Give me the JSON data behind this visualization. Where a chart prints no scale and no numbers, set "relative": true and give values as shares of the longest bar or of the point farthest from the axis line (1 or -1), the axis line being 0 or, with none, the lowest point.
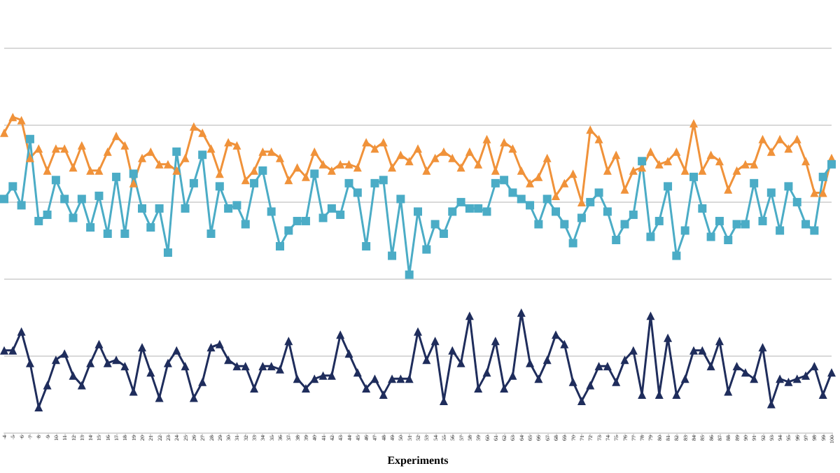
{
  "chart_data": {
    "type": "line",
    "xlabel": "Experiments",
    "relative": true,
    "grid": "y",
    "categories": [
      "4",
      "5",
      "6",
      "7",
      "8",
      "9",
      "10",
      "11",
      "12",
      "13",
      "14",
      "15",
      "16",
      "17",
      "18",
      "19",
      "20",
      "21",
      "22",
      "23",
      "24",
      "25",
      "26",
      "27",
      "28",
      "29",
      "30",
      "31",
      "32",
      "33",
      "34",
      "35",
      "36",
      "37",
      "38",
      "39",
      "40",
      "41",
      "42",
      "43",
      "44",
      "45",
      "46",
      "47",
      "48",
      "49",
      "50",
      "51",
      "52",
      "53",
      "54",
      "55",
      "56",
      "57",
      "58",
      "59",
      "60",
      "61",
      "62",
      "63",
      "64",
      "65",
      "66",
      "67",
      "68",
      "69",
      "70",
      "71",
      "72",
      "73",
      "74",
      "75",
      "76",
      "77",
      "78",
      "79",
      "80",
      "81",
      "82",
      "83",
      "84",
      "85",
      "86",
      "87",
      "88",
      "89",
      "90",
      "91",
      "92",
      "93",
      "94",
      "95",
      "96",
      "97",
      "98",
      "99",
      "100"
    ],
    "series": [
      {
        "color": "#f0923a",
        "marker": "triangle",
        "values": [
          0.95,
          1.0,
          0.99,
          0.87,
          0.9,
          0.83,
          0.9,
          0.9,
          0.84,
          0.91,
          0.83,
          0.83,
          0.89,
          0.94,
          0.91,
          0.79,
          0.87,
          0.89,
          0.85,
          0.85,
          0.83,
          0.87,
          0.97,
          0.95,
          0.9,
          0.82,
          0.92,
          0.91,
          0.8,
          0.83,
          0.89,
          0.89,
          0.87,
          0.8,
          0.84,
          0.81,
          0.89,
          0.85,
          0.83,
          0.85,
          0.85,
          0.84,
          0.92,
          0.9,
          0.92,
          0.84,
          0.88,
          0.86,
          0.9,
          0.83,
          0.87,
          0.89,
          0.87,
          0.84,
          0.89,
          0.85,
          0.93,
          0.83,
          0.92,
          0.9,
          0.83,
          0.79,
          0.81,
          0.87,
          0.75,
          0.79,
          0.82,
          0.73,
          0.96,
          0.93,
          0.83,
          0.88,
          0.77,
          0.83,
          0.84,
          0.89,
          0.85,
          0.86,
          0.89,
          0.83,
          0.98,
          0.83,
          0.88,
          0.86,
          0.77,
          0.83,
          0.85,
          0.85,
          0.93,
          0.89,
          0.93,
          0.9,
          0.93,
          0.86,
          0.76,
          0.76,
          0.87
        ]
      },
      {
        "color": "#4bacc6",
        "marker": "square",
        "values": [
          0.74,
          0.78,
          0.72,
          0.93,
          0.67,
          0.69,
          0.8,
          0.74,
          0.68,
          0.74,
          0.65,
          0.75,
          0.63,
          0.81,
          0.63,
          0.82,
          0.71,
          0.65,
          0.71,
          0.57,
          0.89,
          0.71,
          0.79,
          0.88,
          0.63,
          0.78,
          0.71,
          0.72,
          0.66,
          0.79,
          0.83,
          0.7,
          0.59,
          0.64,
          0.67,
          0.67,
          0.82,
          0.68,
          0.71,
          0.69,
          0.79,
          0.76,
          0.59,
          0.79,
          0.8,
          0.56,
          0.74,
          0.5,
          0.7,
          0.58,
          0.66,
          0.63,
          0.7,
          0.73,
          0.71,
          0.71,
          0.7,
          0.79,
          0.8,
          0.76,
          0.74,
          0.72,
          0.66,
          0.74,
          0.7,
          0.66,
          0.6,
          0.68,
          0.73,
          0.76,
          0.7,
          0.61,
          0.66,
          0.69,
          0.86,
          0.62,
          0.67,
          0.78,
          0.56,
          0.64,
          0.81,
          0.71,
          0.62,
          0.67,
          0.61,
          0.66,
          0.66,
          0.79,
          0.67,
          0.76,
          0.64,
          0.78,
          0.73,
          0.66,
          0.64,
          0.81,
          0.85
        ]
      },
      {
        "color": "#1f2d5c",
        "marker": "triangle",
        "values": [
          0.26,
          0.26,
          0.32,
          0.22,
          0.08,
          0.15,
          0.23,
          0.25,
          0.18,
          0.15,
          0.22,
          0.28,
          0.22,
          0.23,
          0.21,
          0.13,
          0.27,
          0.19,
          0.11,
          0.22,
          0.26,
          0.21,
          0.11,
          0.16,
          0.27,
          0.28,
          0.23,
          0.21,
          0.21,
          0.14,
          0.21,
          0.21,
          0.2,
          0.29,
          0.17,
          0.14,
          0.17,
          0.18,
          0.18,
          0.31,
          0.25,
          0.19,
          0.14,
          0.17,
          0.12,
          0.17,
          0.17,
          0.17,
          0.32,
          0.23,
          0.29,
          0.1,
          0.26,
          0.22,
          0.37,
          0.14,
          0.19,
          0.29,
          0.14,
          0.18,
          0.38,
          0.22,
          0.17,
          0.23,
          0.31,
          0.28,
          0.16,
          0.1,
          0.15,
          0.21,
          0.21,
          0.16,
          0.23,
          0.26,
          0.12,
          0.37,
          0.12,
          0.3,
          0.12,
          0.17,
          0.26,
          0.26,
          0.21,
          0.29,
          0.13,
          0.21,
          0.19,
          0.17,
          0.27,
          0.09,
          0.17,
          0.16,
          0.17,
          0.18,
          0.21,
          0.12,
          0.19
        ]
      }
    ]
  }
}
